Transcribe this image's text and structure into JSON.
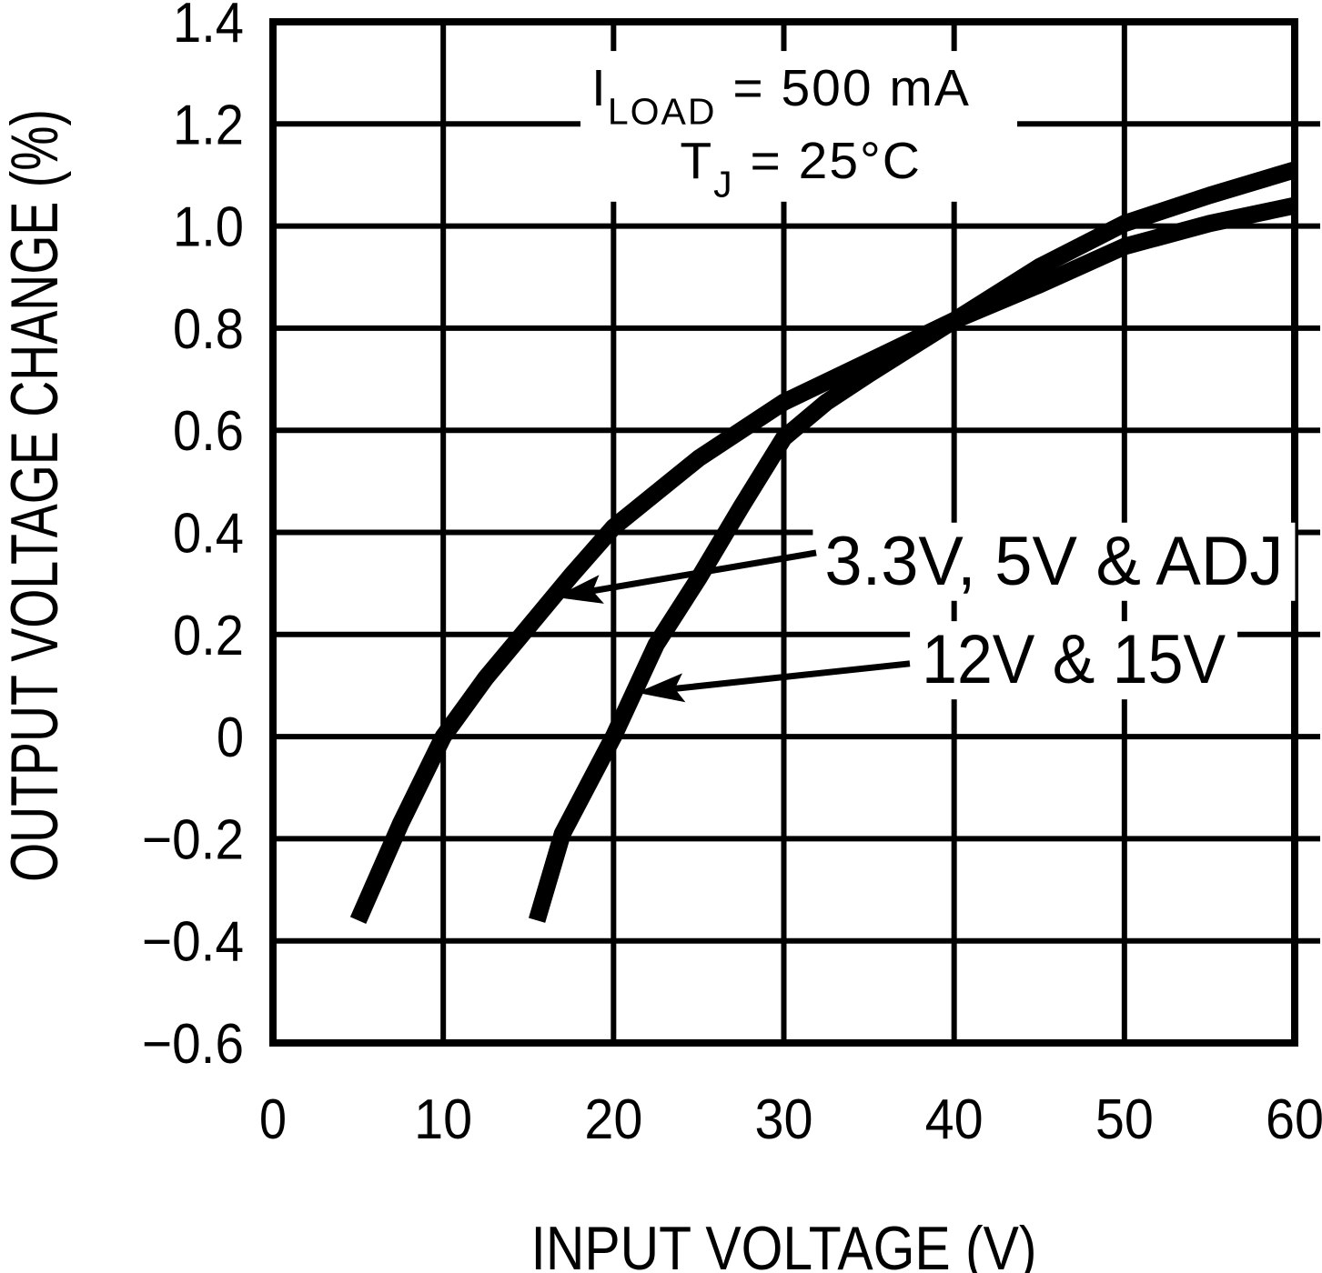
{
  "figure": {
    "bg_color": "#ffffff",
    "ink_color": "#000000"
  },
  "chart_data": {
    "type": "line",
    "title": "",
    "xlabel": "INPUT VOLTAGE (V)",
    "ylabel": "OUTPUT VOLTAGE CHANGE (%)",
    "xlim": [
      0,
      60
    ],
    "ylim": [
      -0.6,
      1.4
    ],
    "grid": true,
    "legend_position": "none",
    "xticks": {
      "values": [
        0,
        10,
        20,
        30,
        40,
        50,
        60
      ],
      "labels": [
        "0",
        "10",
        "20",
        "30",
        "40",
        "50",
        "60"
      ]
    },
    "yticks": {
      "values": [
        1.4,
        1.2,
        1.0,
        0.8,
        0.6,
        0.4,
        0.2,
        0,
        -0.2,
        -0.4,
        -0.6
      ],
      "labels": [
        "1.4",
        "1.2",
        "1.0",
        "0.8",
        "0.6",
        "0.4",
        "0.2",
        "0",
        "−0.2",
        "−0.4",
        "−0.6"
      ]
    },
    "conditions": [
      {
        "text": "I_{LOAD} = 500 mA",
        "anchor_x": 18.7,
        "anchor_y": 1.236
      },
      {
        "text": "T_{J} = 25°C",
        "anchor_x": 23.9,
        "anchor_y": 1.094
      }
    ],
    "series": [
      {
        "name": "3.3V, 5V & ADJ",
        "points": [
          [
            5,
            -0.36
          ],
          [
            7.5,
            -0.17
          ],
          [
            10,
            0
          ],
          [
            12.5,
            0.115
          ],
          [
            15,
            0.215
          ],
          [
            17.5,
            0.315
          ],
          [
            20,
            0.41
          ],
          [
            25,
            0.545
          ],
          [
            30,
            0.655
          ],
          [
            35,
            0.735
          ],
          [
            40,
            0.815
          ],
          [
            45,
            0.885
          ],
          [
            50,
            0.96
          ],
          [
            55,
            1.005
          ],
          [
            60,
            1.04
          ]
        ]
      },
      {
        "name": "12V & 15V",
        "points": [
          [
            15.5,
            -0.36
          ],
          [
            17,
            -0.19
          ],
          [
            20,
            0
          ],
          [
            22.5,
            0.18
          ],
          [
            25,
            0.31
          ],
          [
            27.5,
            0.45
          ],
          [
            30,
            0.585
          ],
          [
            32.5,
            0.655
          ],
          [
            35,
            0.71
          ],
          [
            40,
            0.815
          ],
          [
            45,
            0.92
          ],
          [
            50,
            1.005
          ],
          [
            55,
            1.06
          ],
          [
            60,
            1.11
          ]
        ]
      }
    ],
    "callouts": [
      {
        "text": "3.3V, 5V & ADJ",
        "series": 0,
        "text_x": 32.4,
        "text_y": 0.298,
        "arrow_from": [
          31.9,
          0.36
        ],
        "arrow_to": [
          16.56,
          0.273
        ]
      },
      {
        "text": "12V & 15V",
        "series": 1,
        "text_x": 38.1,
        "text_y": 0.105,
        "arrow_from": [
          37.4,
          0.143
        ],
        "arrow_to": [
          21.37,
          0.086
        ]
      }
    ]
  }
}
